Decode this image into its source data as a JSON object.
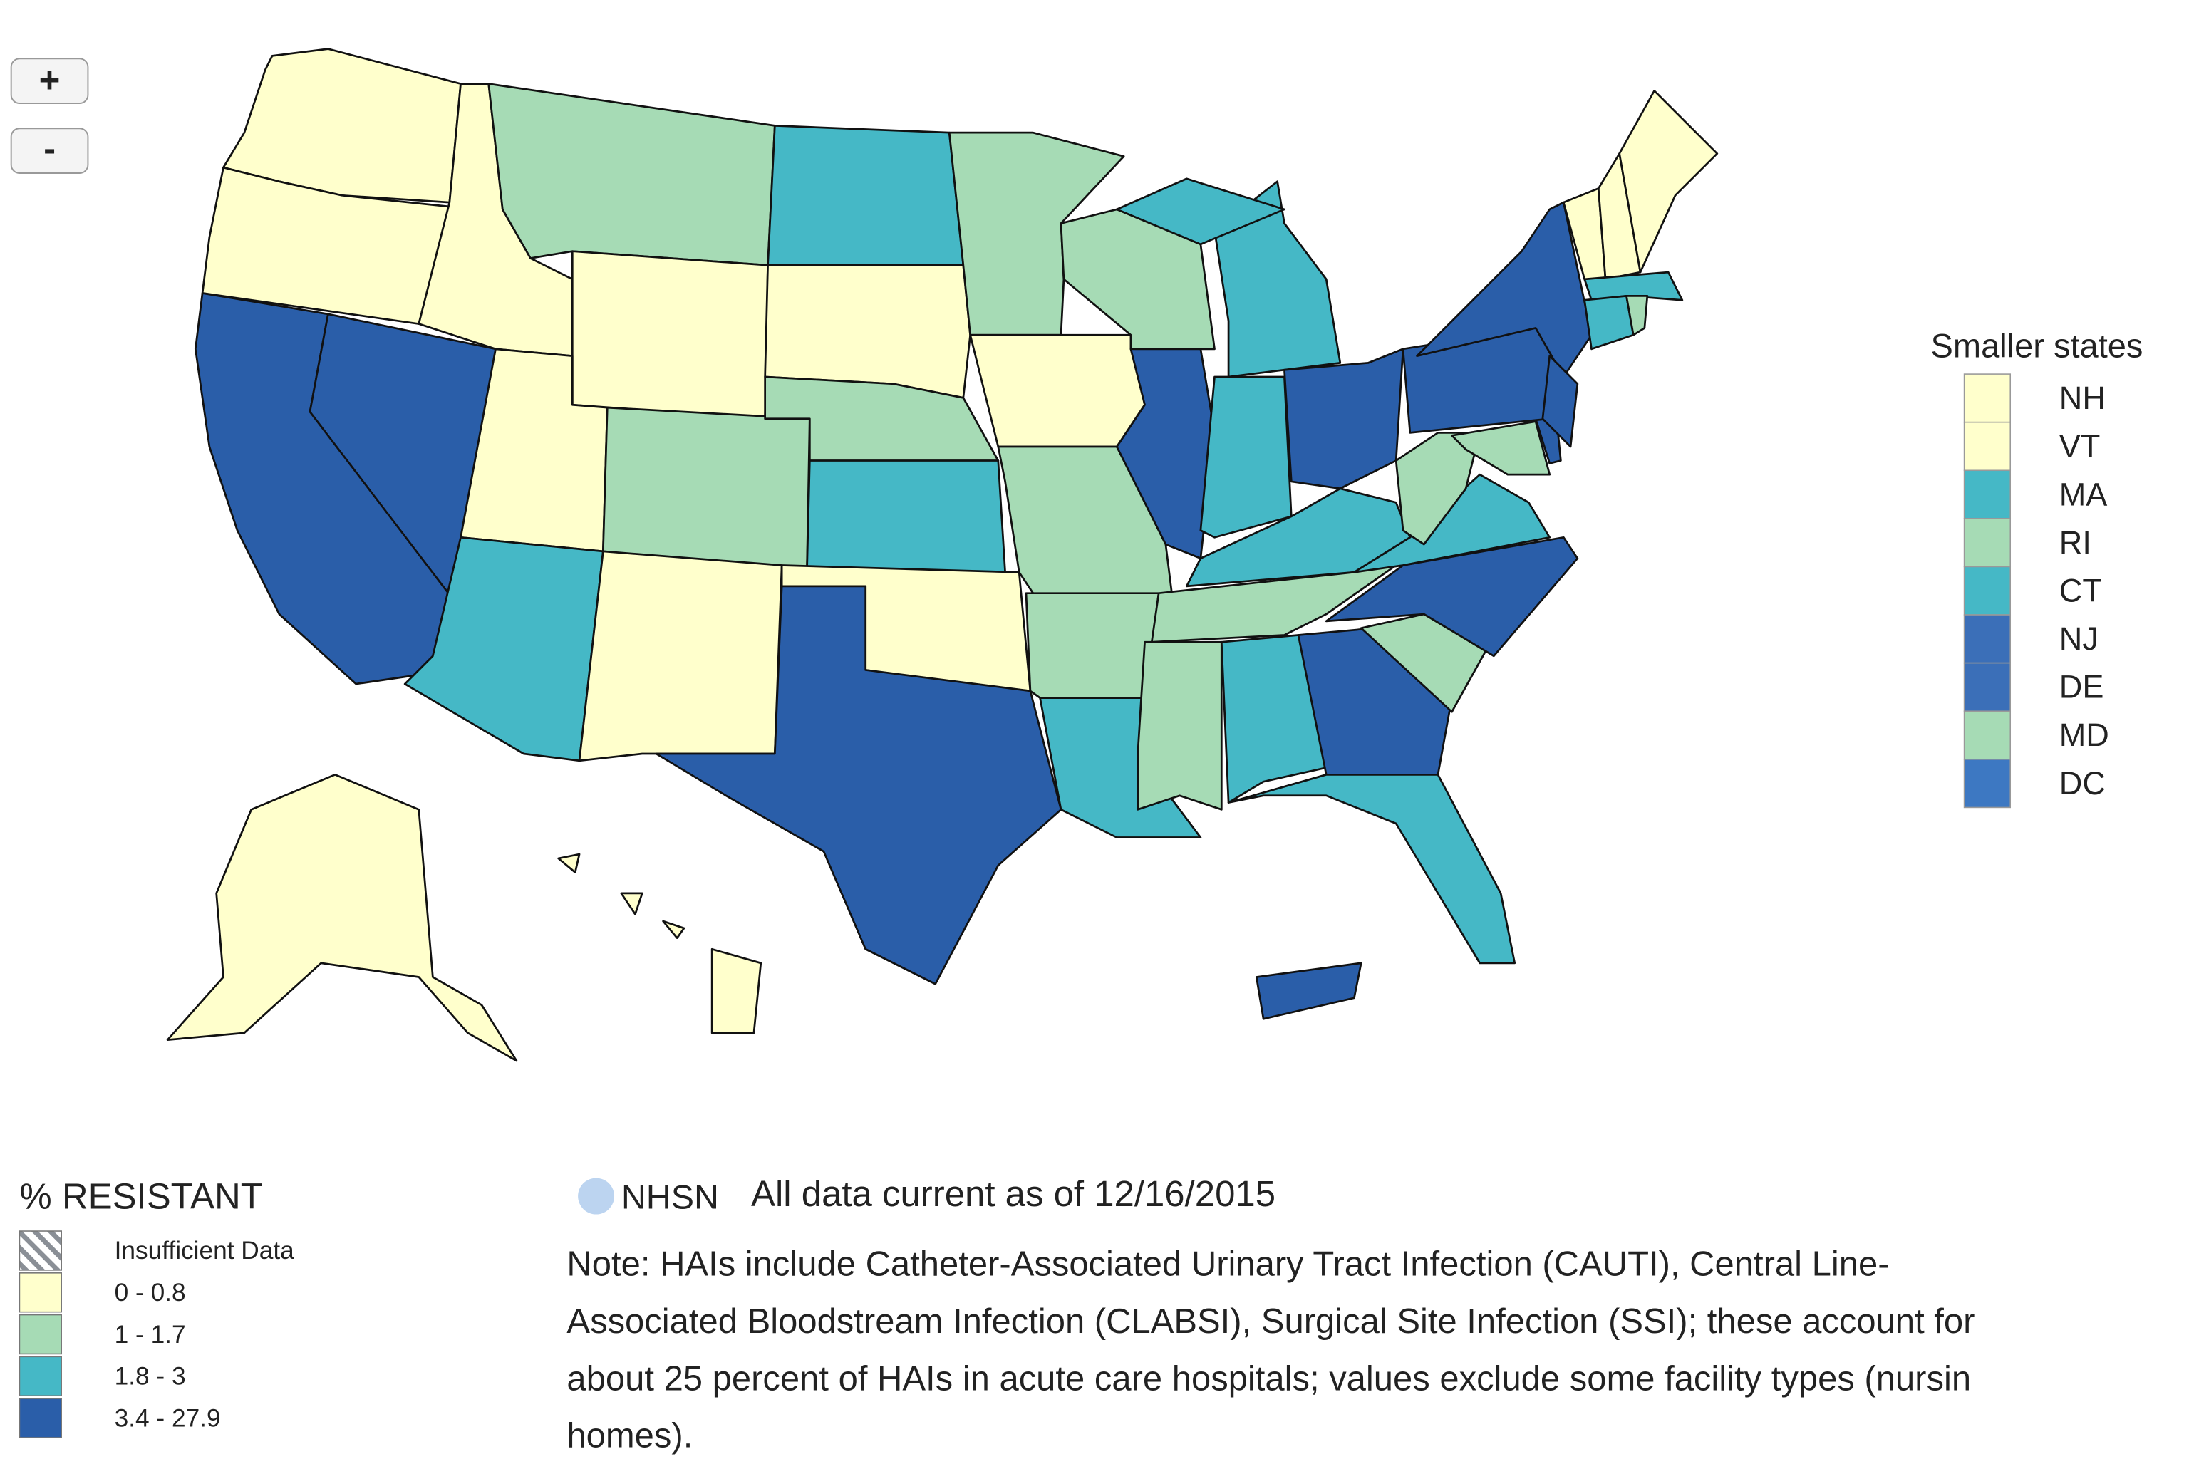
{
  "map": {
    "zoom_in": "+",
    "zoom_out": "-"
  },
  "legend": {
    "title": "% RESISTANT",
    "items": [
      {
        "label": "Insufficient Data"
      },
      {
        "label": "0 - 0.8",
        "color": "#ffffcc"
      },
      {
        "label": "1 - 1.7",
        "color": "#a6dbb5"
      },
      {
        "label": "1.8 - 3",
        "color": "#45b8c6"
      },
      {
        "label": "3.4 - 27.9",
        "color": "#2a5ea9"
      }
    ]
  },
  "smaller_states": {
    "title": "Smaller states",
    "items": [
      {
        "label": "NH",
        "color": "#ffffcc"
      },
      {
        "label": "VT",
        "color": "#ffffcc"
      },
      {
        "label": "MA",
        "color": "#45b8c6"
      },
      {
        "label": "RI",
        "color": "#a6dbb5"
      },
      {
        "label": "CT",
        "color": "#45b8c6"
      },
      {
        "label": "NJ",
        "color": "#3b6fb8"
      },
      {
        "label": "DE",
        "color": "#3b6fb8"
      },
      {
        "label": "MD",
        "color": "#a6dbb5"
      },
      {
        "label": "DC",
        "color": "#3d78c2"
      }
    ]
  },
  "footer": {
    "logo": "NHSN",
    "date": "All data current as of 12/16/2015",
    "note_lines": [
      "Note: HAIs include Catheter-Associated Urinary Tract Infection (CAUTI), Central Line-",
      "Associated Bloodstream Infection (CLABSI), Surgical Site Infection (SSI); these account for",
      "about 25 percent of HAIs in acute care hospitals; values exclude some facility types (nursin",
      "homes)."
    ]
  }
}
